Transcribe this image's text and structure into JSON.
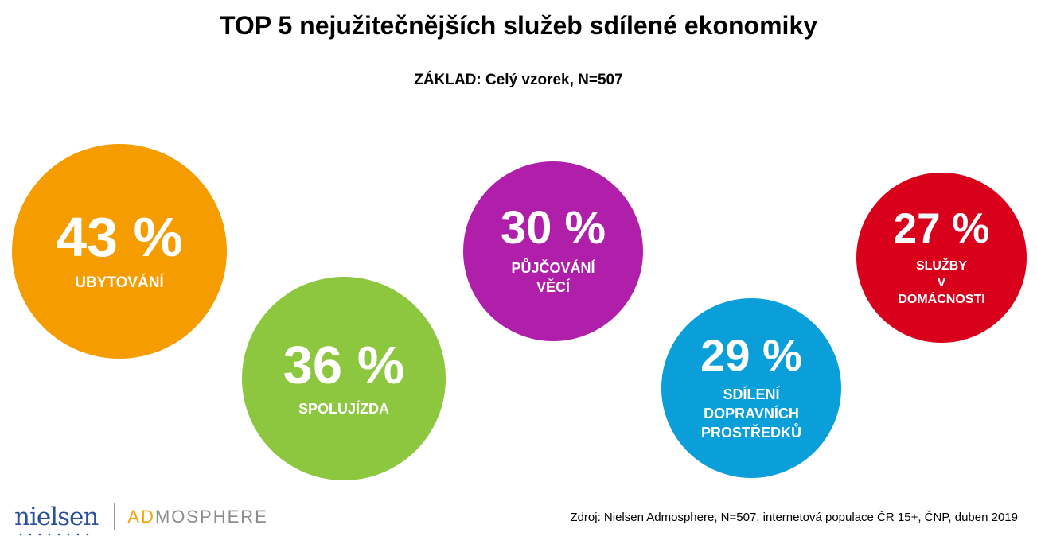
{
  "title": "TOP 5 nejužitečnějších služeb sdílené ekonomiky",
  "subtitle": "ZÁKLAD: Celý vzorek, N=507",
  "chart_data": {
    "type": "bubble",
    "unit": "%",
    "series": [
      {
        "label_lines": [
          "UBYTOVÁNÍ"
        ],
        "value": 43,
        "display": "43 %",
        "color": "#f59c00"
      },
      {
        "label_lines": [
          "SPOLUJÍZDA"
        ],
        "value": 36,
        "display": "36 %",
        "color": "#8dc63f"
      },
      {
        "label_lines": [
          "PŮJČOVÁNÍ",
          "VĚCÍ"
        ],
        "value": 30,
        "display": "30 %",
        "color": "#b01fa9"
      },
      {
        "label_lines": [
          "SDÍLENÍ",
          "DOPRAVNÍCH",
          "PROSTŘEDKŮ"
        ],
        "value": 29,
        "display": "29 %",
        "color": "#0a9fd8"
      },
      {
        "label_lines": [
          "SLUŽBY",
          "V",
          "DOMÁCNOSTI"
        ],
        "value": 27,
        "display": "27 %",
        "color": "#d9001b"
      }
    ]
  },
  "footer": {
    "logo_nielsen": "nielsen",
    "logo_ad": "AD",
    "logo_mosphere": "MOSPHERE",
    "source": "Zdroj: Nielsen Admosphere, N=507, internetová populace ČR 15+, ČNP, duben 2019"
  }
}
